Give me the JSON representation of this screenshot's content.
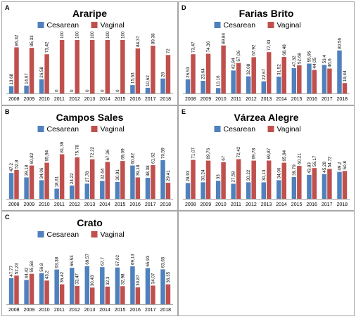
{
  "colors": {
    "cesarean": "#4f81bd",
    "vaginal": "#c0504d",
    "border": "#a6a6a6",
    "axis": "#a6a6a6",
    "text": "#000000"
  },
  "chart_data": [
    {
      "letter": "A",
      "title": "Araripe",
      "type": "bar",
      "categories": [
        "2008",
        "2009",
        "2010",
        "2011",
        "2012",
        "2013",
        "2014",
        "2015",
        "2016",
        "2017",
        "2018"
      ],
      "series": [
        {
          "name": "Cesarean",
          "values": [
            13.68,
            14.67,
            26.58,
            0,
            0,
            0,
            0,
            0,
            15.63,
            10.62,
            28
          ],
          "labels": [
            "13,68",
            "14,67",
            "26,58",
            "0",
            "0",
            "0",
            "0",
            "0",
            "15,63",
            "10,62",
            "28"
          ]
        },
        {
          "name": "Vaginal",
          "values": [
            86.32,
            85.33,
            73.42,
            100,
            100,
            100,
            100,
            100,
            84.37,
            89.38,
            72
          ],
          "labels": [
            "86,32",
            "85,33",
            "73,42",
            "100",
            "100",
            "100",
            "100",
            "100",
            "84,37",
            "89,38",
            "72"
          ]
        }
      ],
      "ylim": [
        0,
        100
      ],
      "legend": "top"
    },
    {
      "letter": "B",
      "title": "Campos Sales",
      "type": "bar",
      "categories": [
        "2008",
        "2009",
        "2010",
        "2011",
        "2012",
        "2013",
        "2014",
        "2015",
        "2016",
        "2017",
        "2018"
      ],
      "series": [
        {
          "name": "Cesarean",
          "values": [
            47.2,
            39.18,
            34.06,
            18.61,
            24.22,
            27.78,
            32.64,
            30.91,
            60.82,
            38.38,
            70.59
          ],
          "labels": [
            "47,2",
            "39,18",
            "34,06",
            "18,61",
            "24,22",
            "27,78",
            "32,64",
            "30,91",
            "60,82",
            "38,38",
            "70,59"
          ]
        },
        {
          "name": "Vaginal",
          "values": [
            52.8,
            60.82,
            65.94,
            81.39,
            75.78,
            72.22,
            67.36,
            69.09,
            39.18,
            61.62,
            29.41
          ],
          "labels": [
            "52,8",
            "60,82",
            "65,94",
            "81,39",
            "75,78",
            "72,22",
            "67,36",
            "69,09",
            "39,18",
            "61,62",
            "29,41"
          ]
        }
      ],
      "ylim": [
        0,
        100
      ],
      "legend": "top"
    },
    {
      "letter": "C",
      "title": "Crato",
      "type": "bar",
      "categories": [
        "2008",
        "2009",
        "2010",
        "2011",
        "2012",
        "2013",
        "2014",
        "2015",
        "2016",
        "2017",
        "2018"
      ],
      "series": [
        {
          "name": "Cesarean",
          "values": [
            47.77,
            44.42,
            56.8,
            63.38,
            66.53,
            69.57,
            67.7,
            67.02,
            69.13,
            65.93,
            63.65
          ],
          "labels": [
            "47,77",
            "44,42",
            "56,8",
            "63,38",
            "66,53",
            "69,57",
            "67,7",
            "67,02",
            "69,13",
            "65,93",
            "63,65"
          ]
        },
        {
          "name": "Vaginal",
          "values": [
            52.23,
            55.58,
            43.2,
            36.42,
            33.47,
            30.43,
            32.3,
            32.98,
            30.87,
            34.07,
            36.35
          ],
          "labels": [
            "52,23",
            "55,58",
            "43,2",
            "36,42",
            "33,47",
            "30,43",
            "32,3",
            "32,98",
            "30,87",
            "34,07",
            "36,35"
          ]
        }
      ],
      "ylim": [
        0,
        100
      ],
      "legend": "top"
    },
    {
      "letter": "D",
      "title": "Farias Brito",
      "type": "bar",
      "categories": [
        "2008",
        "2009",
        "2010",
        "2011",
        "2012",
        "2013",
        "2014",
        "2015",
        "2016",
        "2017",
        "2018"
      ],
      "series": [
        {
          "name": "Cesarean",
          "values": [
            26.53,
            23.64,
            10.16,
            42.94,
            32.08,
            22.67,
            31.52,
            47.32,
            55.95,
            53.4,
            80.56
          ],
          "labels": [
            "26,53",
            "23,64",
            "10,16",
            "42,94",
            "32,08",
            "22,67",
            "31,52",
            "47,32",
            "55,95",
            "53,4",
            "80,56"
          ]
        },
        {
          "name": "Vaginal",
          "values": [
            73.47,
            74.36,
            89.84,
            57.06,
            67.92,
            77.33,
            68.48,
            52.68,
            44.05,
            46.6,
            19.44
          ],
          "labels": [
            "73,47",
            "74,36",
            "89,84",
            "57,06",
            "67,92",
            "77,33",
            "68,48",
            "52,68",
            "44,05",
            "46,6",
            "19,44"
          ]
        }
      ],
      "ylim": [
        0,
        100
      ],
      "legend": "top"
    },
    {
      "letter": "E",
      "title": "Várzea Alegre",
      "type": "bar",
      "categories": [
        "2008",
        "2009",
        "2010",
        "2011",
        "2012",
        "2013",
        "2014",
        "2015",
        "2016",
        "2017",
        "2018"
      ],
      "series": [
        {
          "name": "Cesarean",
          "values": [
            28.93,
            30.24,
            33,
            27.58,
            30.22,
            30.13,
            34.06,
            39.79,
            43.83,
            45.28,
            49.2
          ],
          "labels": [
            "28,93",
            "30,24",
            "33",
            "27,58",
            "30,22",
            "30,13",
            "34,06",
            "39,79",
            "43,83",
            "45,28",
            "49,2"
          ]
        },
        {
          "name": "Vaginal",
          "values": [
            71.07,
            69.76,
            67,
            72.42,
            69.78,
            69.87,
            65.94,
            60.21,
            56.17,
            54.72,
            50.8
          ],
          "labels": [
            "71,07",
            "69,76",
            "67",
            "72,42",
            "69,78",
            "69,87",
            "65,94",
            "60,21",
            "56,17",
            "54,72",
            "50,8"
          ]
        }
      ],
      "ylim": [
        0,
        100
      ],
      "legend": "top"
    }
  ]
}
